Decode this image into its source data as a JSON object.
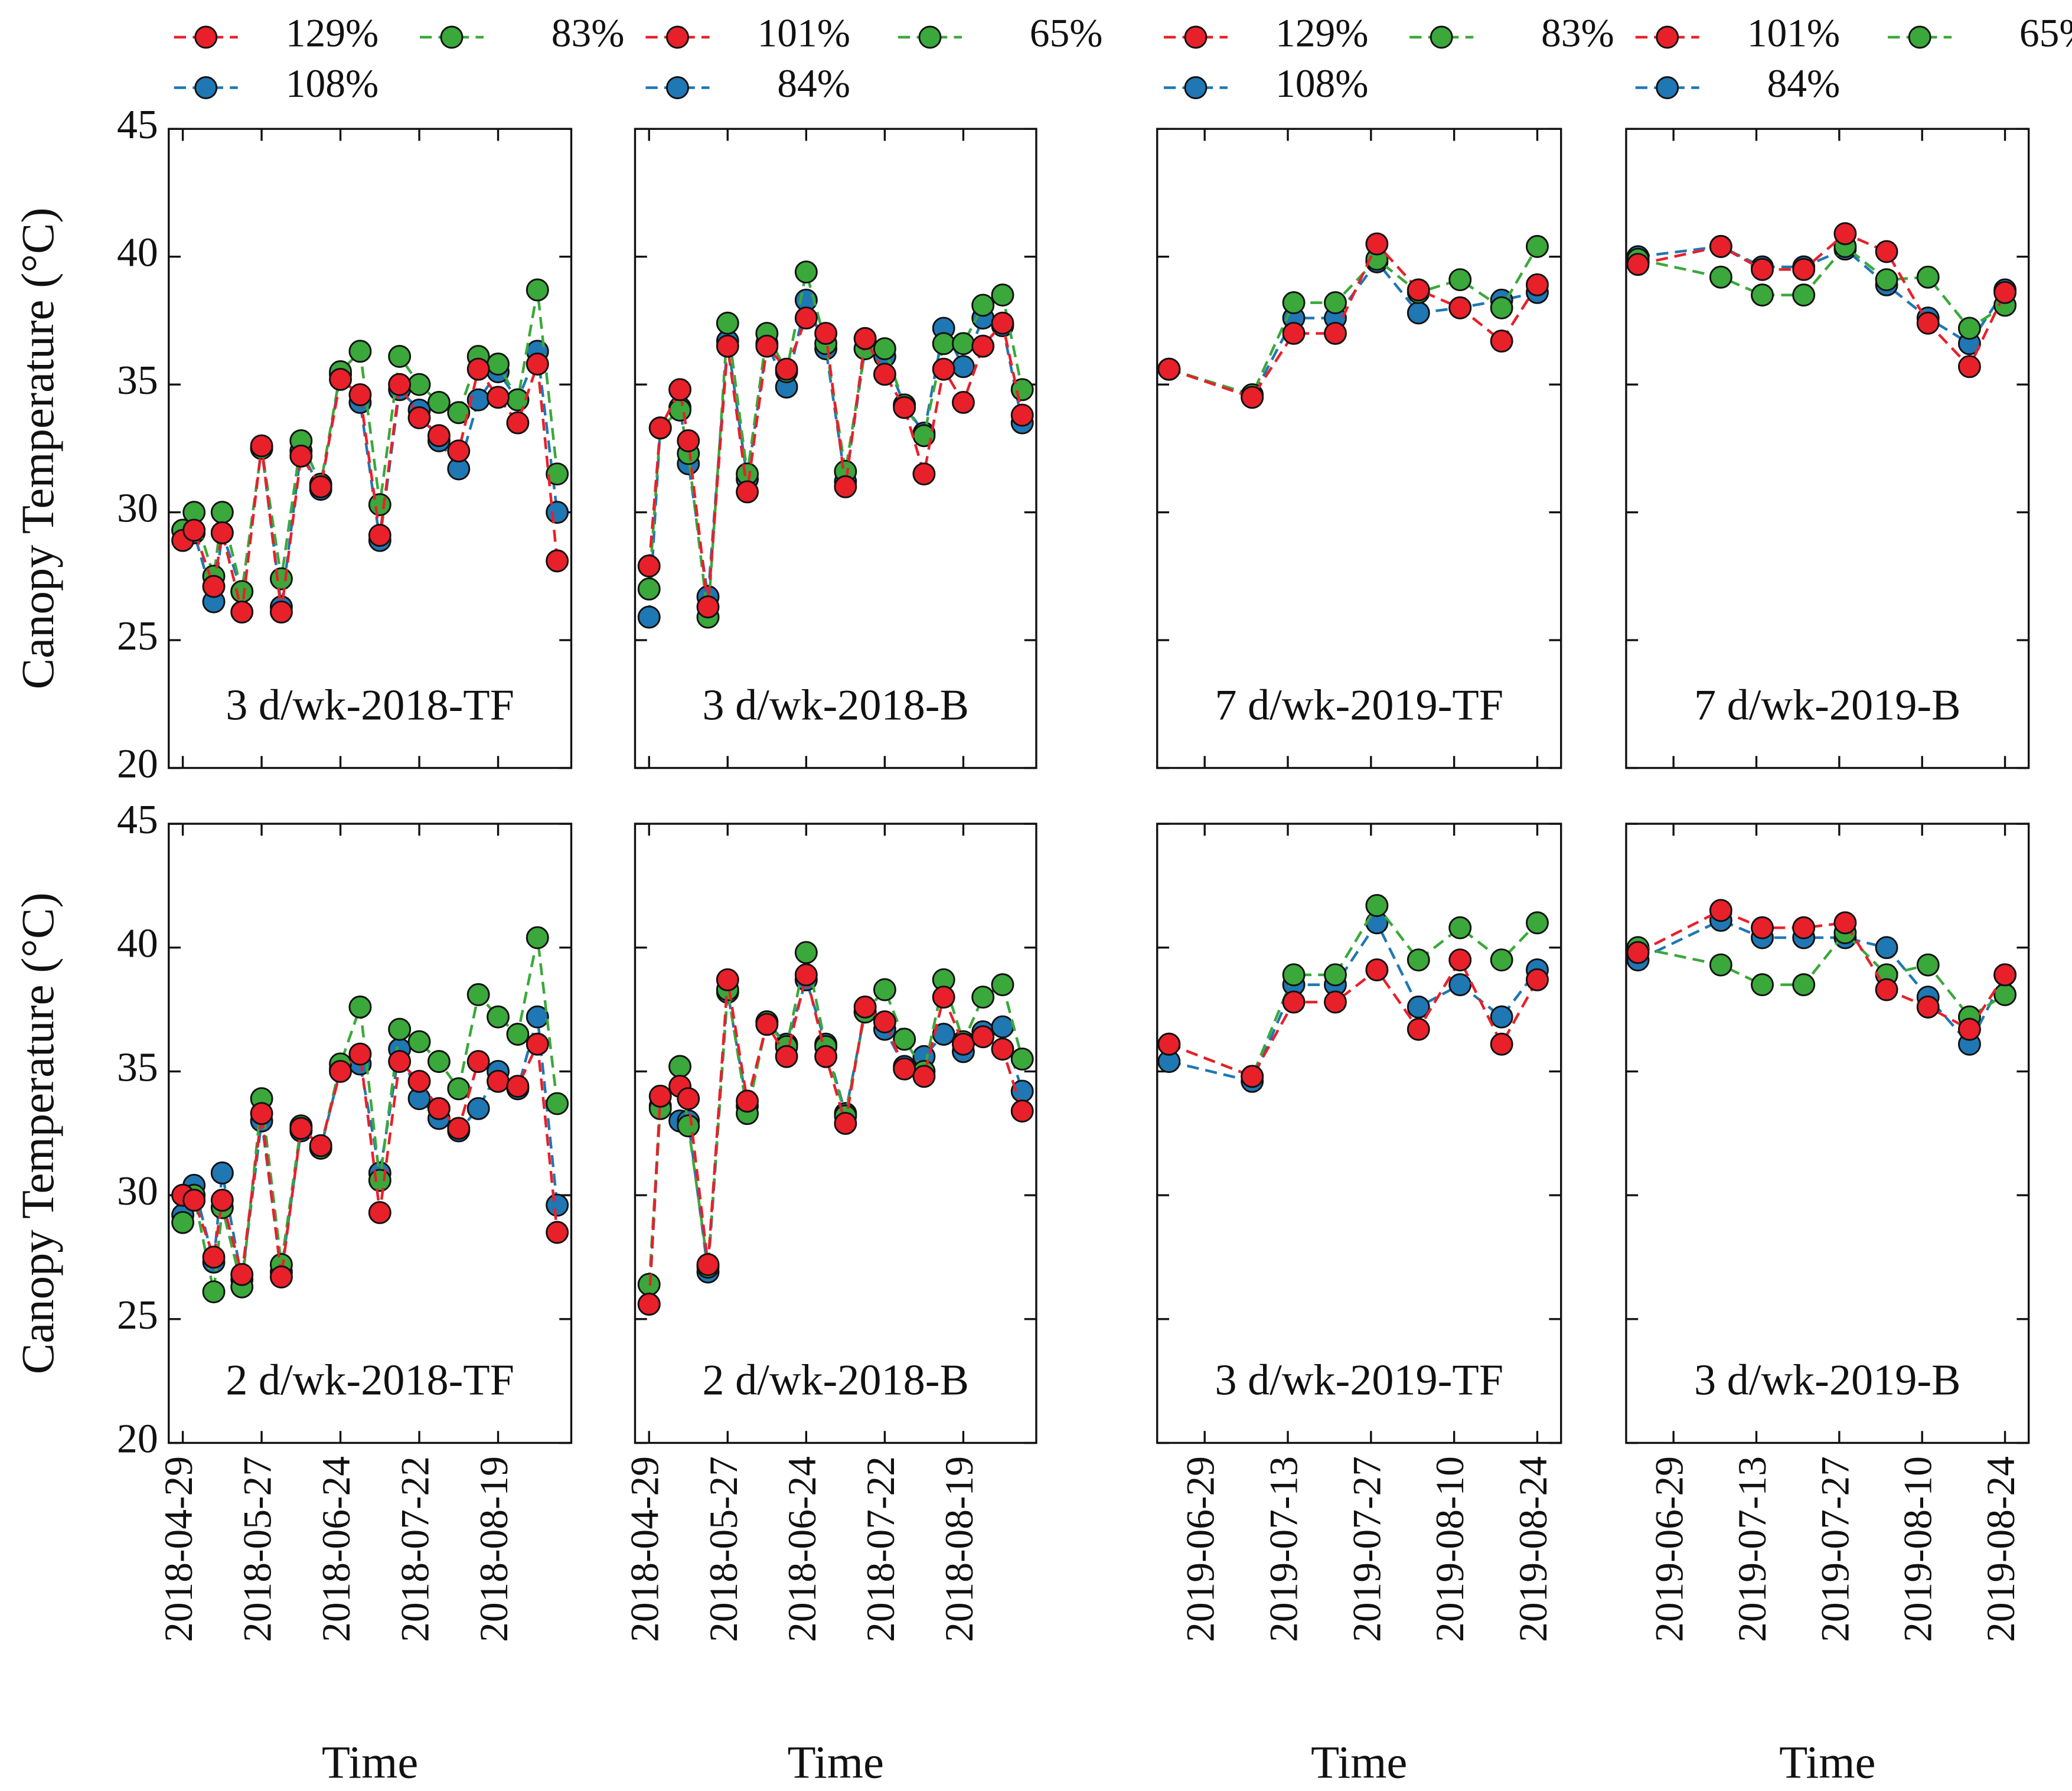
{
  "chart_data": [
    {
      "type": "line",
      "title": "3 d/wk-2018-TF",
      "ylabel": "Canopy Temperature (°C)",
      "ylim": [
        20,
        45
      ],
      "yticks": [
        20,
        25,
        30,
        35,
        40,
        45
      ],
      "ytick_labels": true,
      "xtick_labels": false,
      "xlim": [
        "2018-04-24",
        "2018-09-14"
      ],
      "xticks": [
        "2018-04-29",
        "2018-05-27",
        "2018-06-24",
        "2018-07-22",
        "2018-08-19"
      ],
      "x": [
        "2018-04-29",
        "2018-05-03",
        "2018-05-10",
        "2018-05-13",
        "2018-05-20",
        "2018-05-27",
        "2018-06-03",
        "2018-06-10",
        "2018-06-17",
        "2018-06-24",
        "2018-07-01",
        "2018-07-08",
        "2018-07-15",
        "2018-07-22",
        "2018-07-29",
        "2018-08-05",
        "2018-08-12",
        "2018-08-19",
        "2018-08-26",
        "2018-09-02",
        "2018-09-09"
      ],
      "series": [
        {
          "name": "129%",
          "color": "#e8202a",
          "values": [
            28.9,
            29.3,
            27.1,
            29.2,
            26.1,
            32.6,
            26.1,
            32.2,
            31.0,
            35.2,
            34.6,
            29.1,
            35.0,
            33.7,
            33.0,
            32.4,
            35.6,
            34.5,
            33.5,
            35.8,
            28.1
          ]
        },
        {
          "name": "83%",
          "color": "#3aa83a",
          "values": [
            29.3,
            30.0,
            27.5,
            30.0,
            26.9,
            32.5,
            27.4,
            32.8,
            31.1,
            35.5,
            36.3,
            30.3,
            36.1,
            35.0,
            34.3,
            33.9,
            36.1,
            35.8,
            34.4,
            38.7,
            31.5
          ]
        },
        {
          "name": "108%",
          "color": "#1f77b4",
          "values": [
            29.3,
            29.2,
            26.5,
            29.2,
            26.9,
            32.5,
            26.3,
            32.4,
            30.9,
            35.4,
            34.3,
            28.9,
            34.8,
            34.0,
            32.8,
            31.7,
            34.4,
            35.5,
            34.4,
            36.3,
            30.0
          ]
        }
      ]
    },
    {
      "type": "line",
      "title": "3 d/wk-2018-B",
      "ylim": [
        20,
        45
      ],
      "yticks": [
        20,
        25,
        30,
        35,
        40,
        45
      ],
      "ytick_labels": false,
      "xtick_labels": false,
      "xlim": [
        "2018-04-24",
        "2018-09-14"
      ],
      "xticks": [
        "2018-04-29",
        "2018-05-27",
        "2018-06-24",
        "2018-07-22",
        "2018-08-19"
      ],
      "x": [
        "2018-04-29",
        "2018-05-03",
        "2018-05-10",
        "2018-05-13",
        "2018-05-20",
        "2018-05-27",
        "2018-06-03",
        "2018-06-10",
        "2018-06-17",
        "2018-06-24",
        "2018-07-01",
        "2018-07-08",
        "2018-07-15",
        "2018-07-22",
        "2018-07-29",
        "2018-08-05",
        "2018-08-12",
        "2018-08-19",
        "2018-08-26",
        "2018-09-02",
        "2018-09-09"
      ],
      "series": [
        {
          "name": "129%",
          "color": "#e8202a",
          "values": [
            27.9,
            33.3,
            34.8,
            32.8,
            26.3,
            36.5,
            30.8,
            36.5,
            35.6,
            37.6,
            37.0,
            31.0,
            36.8,
            35.4,
            34.1,
            31.5,
            35.6,
            34.3,
            36.5,
            37.4,
            33.8
          ]
        },
        {
          "name": "83%",
          "color": "#3aa83a",
          "values": [
            27.0,
            33.3,
            34.0,
            32.3,
            25.9,
            37.4,
            31.5,
            37.0,
            35.5,
            39.4,
            36.6,
            31.6,
            36.4,
            36.4,
            34.2,
            33.0,
            36.6,
            36.6,
            38.1,
            38.5,
            34.8
          ]
        },
        {
          "name": "108%",
          "color": "#1f77b4",
          "values": [
            25.9,
            33.3,
            34.1,
            31.9,
            26.7,
            36.7,
            31.3,
            36.6,
            34.9,
            38.3,
            36.4,
            31.2,
            36.4,
            36.1,
            34.2,
            33.1,
            37.2,
            35.7,
            37.6,
            37.3,
            33.5
          ]
        }
      ]
    },
    {
      "type": "line",
      "title": "7 d/wk-2019-TF",
      "ylim": [
        20,
        45
      ],
      "yticks": [
        20,
        25,
        30,
        35,
        40,
        45
      ],
      "ytick_labels": false,
      "xtick_labels": false,
      "xlim": [
        "2019-06-21",
        "2019-08-28"
      ],
      "xticks": [
        "2019-06-29",
        "2019-07-13",
        "2019-07-27",
        "2019-08-10",
        "2019-08-24"
      ],
      "x": [
        "2019-06-23",
        "2019-07-07",
        "2019-07-14",
        "2019-07-21",
        "2019-07-28",
        "2019-08-04",
        "2019-08-11",
        "2019-08-18",
        "2019-08-24"
      ],
      "series": [
        {
          "name": "129%",
          "color": "#e8202a",
          "values": [
            35.6,
            34.5,
            37.0,
            37.0,
            40.5,
            38.7,
            38.0,
            36.7,
            38.9
          ]
        },
        {
          "name": "83%",
          "color": "#3aa83a",
          "values": [
            35.6,
            34.6,
            38.2,
            38.2,
            39.9,
            38.6,
            39.1,
            38.0,
            40.4
          ]
        },
        {
          "name": "108%",
          "color": "#1f77b4",
          "values": [
            35.6,
            34.5,
            37.6,
            37.6,
            39.8,
            37.8,
            38.0,
            38.3,
            38.6
          ]
        }
      ]
    },
    {
      "type": "line",
      "title": "7 d/wk-2019-B",
      "ylim": [
        20,
        45
      ],
      "yticks": [
        20,
        25,
        30,
        35,
        40,
        45
      ],
      "ytick_labels": false,
      "xtick_labels": false,
      "xlim": [
        "2019-06-21",
        "2019-08-28"
      ],
      "xticks": [
        "2019-06-29",
        "2019-07-13",
        "2019-07-27",
        "2019-08-10",
        "2019-08-24"
      ],
      "x": [
        "2019-06-23",
        "2019-07-07",
        "2019-07-14",
        "2019-07-21",
        "2019-07-28",
        "2019-08-04",
        "2019-08-11",
        "2019-08-18",
        "2019-08-24"
      ],
      "series": [
        {
          "name": "129%",
          "color": "#e8202a",
          "values": [
            39.7,
            40.4,
            39.5,
            39.5,
            40.9,
            40.2,
            37.4,
            35.7,
            38.6
          ]
        },
        {
          "name": "83%",
          "color": "#3aa83a",
          "values": [
            39.9,
            39.2,
            38.5,
            38.5,
            40.4,
            39.1,
            39.2,
            37.2,
            38.1
          ]
        },
        {
          "name": "108%",
          "color": "#1f77b4",
          "values": [
            40.0,
            40.4,
            39.6,
            39.6,
            40.3,
            38.9,
            37.6,
            36.6,
            38.7
          ]
        }
      ]
    },
    {
      "type": "line",
      "title": "2 d/wk-2018-TF",
      "ylabel": "Canopy Temperature (°C)",
      "xlabel": "Time",
      "ylim": [
        20,
        45
      ],
      "yticks": [
        20,
        25,
        30,
        35,
        40,
        45
      ],
      "ytick_labels": true,
      "xtick_labels": true,
      "xlim": [
        "2018-04-24",
        "2018-09-14"
      ],
      "xticks": [
        "2018-04-29",
        "2018-05-27",
        "2018-06-24",
        "2018-07-22",
        "2018-08-19"
      ],
      "x": [
        "2018-04-29",
        "2018-05-03",
        "2018-05-10",
        "2018-05-13",
        "2018-05-20",
        "2018-05-27",
        "2018-06-03",
        "2018-06-10",
        "2018-06-17",
        "2018-06-24",
        "2018-07-01",
        "2018-07-08",
        "2018-07-15",
        "2018-07-22",
        "2018-07-29",
        "2018-08-05",
        "2018-08-12",
        "2018-08-19",
        "2018-08-26",
        "2018-09-02",
        "2018-09-09"
      ],
      "series": [
        {
          "name": "101%",
          "color": "#e8202a",
          "values": [
            30.0,
            29.8,
            27.5,
            29.8,
            26.8,
            33.3,
            26.7,
            32.7,
            32.0,
            35.0,
            35.7,
            29.3,
            35.4,
            34.6,
            33.5,
            32.7,
            35.4,
            34.6,
            34.4,
            36.1,
            28.5
          ]
        },
        {
          "name": "65%",
          "color": "#3aa83a",
          "values": [
            28.9,
            30.0,
            26.1,
            29.5,
            26.3,
            33.9,
            27.2,
            32.8,
            31.9,
            35.3,
            37.6,
            30.6,
            36.7,
            36.2,
            35.4,
            34.3,
            38.1,
            37.2,
            36.5,
            40.4,
            33.7
          ]
        },
        {
          "name": "84%",
          "color": "#1f77b4",
          "values": [
            29.2,
            30.4,
            27.3,
            30.9,
            26.6,
            33.0,
            26.9,
            32.6,
            31.9,
            35.1,
            35.3,
            30.9,
            35.9,
            33.9,
            33.1,
            32.6,
            33.5,
            35.0,
            34.3,
            37.2,
            29.6
          ]
        }
      ]
    },
    {
      "type": "line",
      "title": "2 d/wk-2018-B",
      "xlabel": "Time",
      "ylim": [
        20,
        45
      ],
      "yticks": [
        20,
        25,
        30,
        35,
        40,
        45
      ],
      "ytick_labels": false,
      "xtick_labels": true,
      "xlim": [
        "2018-04-24",
        "2018-09-14"
      ],
      "xticks": [
        "2018-04-29",
        "2018-05-27",
        "2018-06-24",
        "2018-07-22",
        "2018-08-19"
      ],
      "x": [
        "2018-04-29",
        "2018-05-03",
        "2018-05-10",
        "2018-05-13",
        "2018-05-20",
        "2018-05-27",
        "2018-06-03",
        "2018-06-10",
        "2018-06-17",
        "2018-06-24",
        "2018-07-01",
        "2018-07-08",
        "2018-07-15",
        "2018-07-22",
        "2018-07-29",
        "2018-08-05",
        "2018-08-12",
        "2018-08-19",
        "2018-08-26",
        "2018-09-02",
        "2018-09-09"
      ],
      "series": [
        {
          "name": "101%",
          "color": "#e8202a",
          "values": [
            25.6,
            34.0,
            34.4,
            33.9,
            27.2,
            38.7,
            33.8,
            36.9,
            35.6,
            38.9,
            35.6,
            32.9,
            37.6,
            37.0,
            35.1,
            34.8,
            38.0,
            36.1,
            36.4,
            35.9,
            33.4
          ]
        },
        {
          "name": "65%",
          "color": "#3aa83a",
          "values": [
            26.4,
            33.5,
            35.2,
            32.8,
            27.1,
            38.3,
            33.3,
            37.0,
            36.0,
            39.8,
            36.0,
            33.2,
            37.4,
            38.3,
            36.3,
            35.0,
            38.7,
            36.2,
            38.0,
            38.5,
            35.5
          ]
        },
        {
          "name": "84%",
          "color": "#1f77b4",
          "values": [
            25.6,
            33.6,
            33.0,
            33.0,
            26.9,
            38.2,
            33.6,
            37.0,
            36.1,
            38.7,
            36.1,
            33.3,
            37.4,
            36.7,
            35.2,
            35.6,
            36.5,
            35.8,
            36.6,
            36.8,
            34.2
          ]
        }
      ]
    },
    {
      "type": "line",
      "title": "3 d/wk-2019-TF",
      "xlabel": "Time",
      "ylim": [
        20,
        45
      ],
      "yticks": [
        20,
        25,
        30,
        35,
        40,
        45
      ],
      "ytick_labels": false,
      "xtick_labels": true,
      "xlim": [
        "2019-06-21",
        "2019-08-28"
      ],
      "xticks": [
        "2019-06-29",
        "2019-07-13",
        "2019-07-27",
        "2019-08-10",
        "2019-08-24"
      ],
      "x": [
        "2019-06-23",
        "2019-07-07",
        "2019-07-14",
        "2019-07-21",
        "2019-07-28",
        "2019-08-04",
        "2019-08-11",
        "2019-08-18",
        "2019-08-24"
      ],
      "series": [
        {
          "name": "101%",
          "color": "#e8202a",
          "values": [
            36.1,
            34.8,
            37.8,
            37.8,
            39.1,
            36.7,
            39.5,
            36.1,
            38.7
          ]
        },
        {
          "name": "65%",
          "color": "#3aa83a",
          "values": [
            36.1,
            34.8,
            38.9,
            38.9,
            41.7,
            39.5,
            40.8,
            39.5,
            41.0
          ]
        },
        {
          "name": "84%",
          "color": "#1f77b4",
          "values": [
            35.4,
            34.6,
            38.5,
            38.5,
            41.0,
            37.6,
            38.5,
            37.2,
            39.1
          ]
        }
      ]
    },
    {
      "type": "line",
      "title": "3 d/wk-2019-B",
      "xlabel": "Time",
      "ylim": [
        20,
        45
      ],
      "yticks": [
        20,
        25,
        30,
        35,
        40,
        45
      ],
      "ytick_labels": false,
      "xtick_labels": true,
      "xlim": [
        "2019-06-21",
        "2019-08-28"
      ],
      "xticks": [
        "2019-06-29",
        "2019-07-13",
        "2019-07-27",
        "2019-08-10",
        "2019-08-24"
      ],
      "x": [
        "2019-06-23",
        "2019-07-07",
        "2019-07-14",
        "2019-07-21",
        "2019-07-28",
        "2019-08-04",
        "2019-08-11",
        "2019-08-18",
        "2019-08-24"
      ],
      "series": [
        {
          "name": "101%",
          "color": "#e8202a",
          "values": [
            39.8,
            41.5,
            40.8,
            40.8,
            41.0,
            38.3,
            37.6,
            36.7,
            38.9
          ]
        },
        {
          "name": "65%",
          "color": "#3aa83a",
          "values": [
            40.0,
            39.3,
            38.5,
            38.5,
            40.6,
            38.9,
            39.3,
            37.2,
            38.1
          ]
        },
        {
          "name": "84%",
          "color": "#1f77b4",
          "values": [
            39.5,
            41.1,
            40.4,
            40.4,
            40.4,
            40.0,
            38.0,
            36.1,
            38.9
          ]
        }
      ]
    }
  ]
}
